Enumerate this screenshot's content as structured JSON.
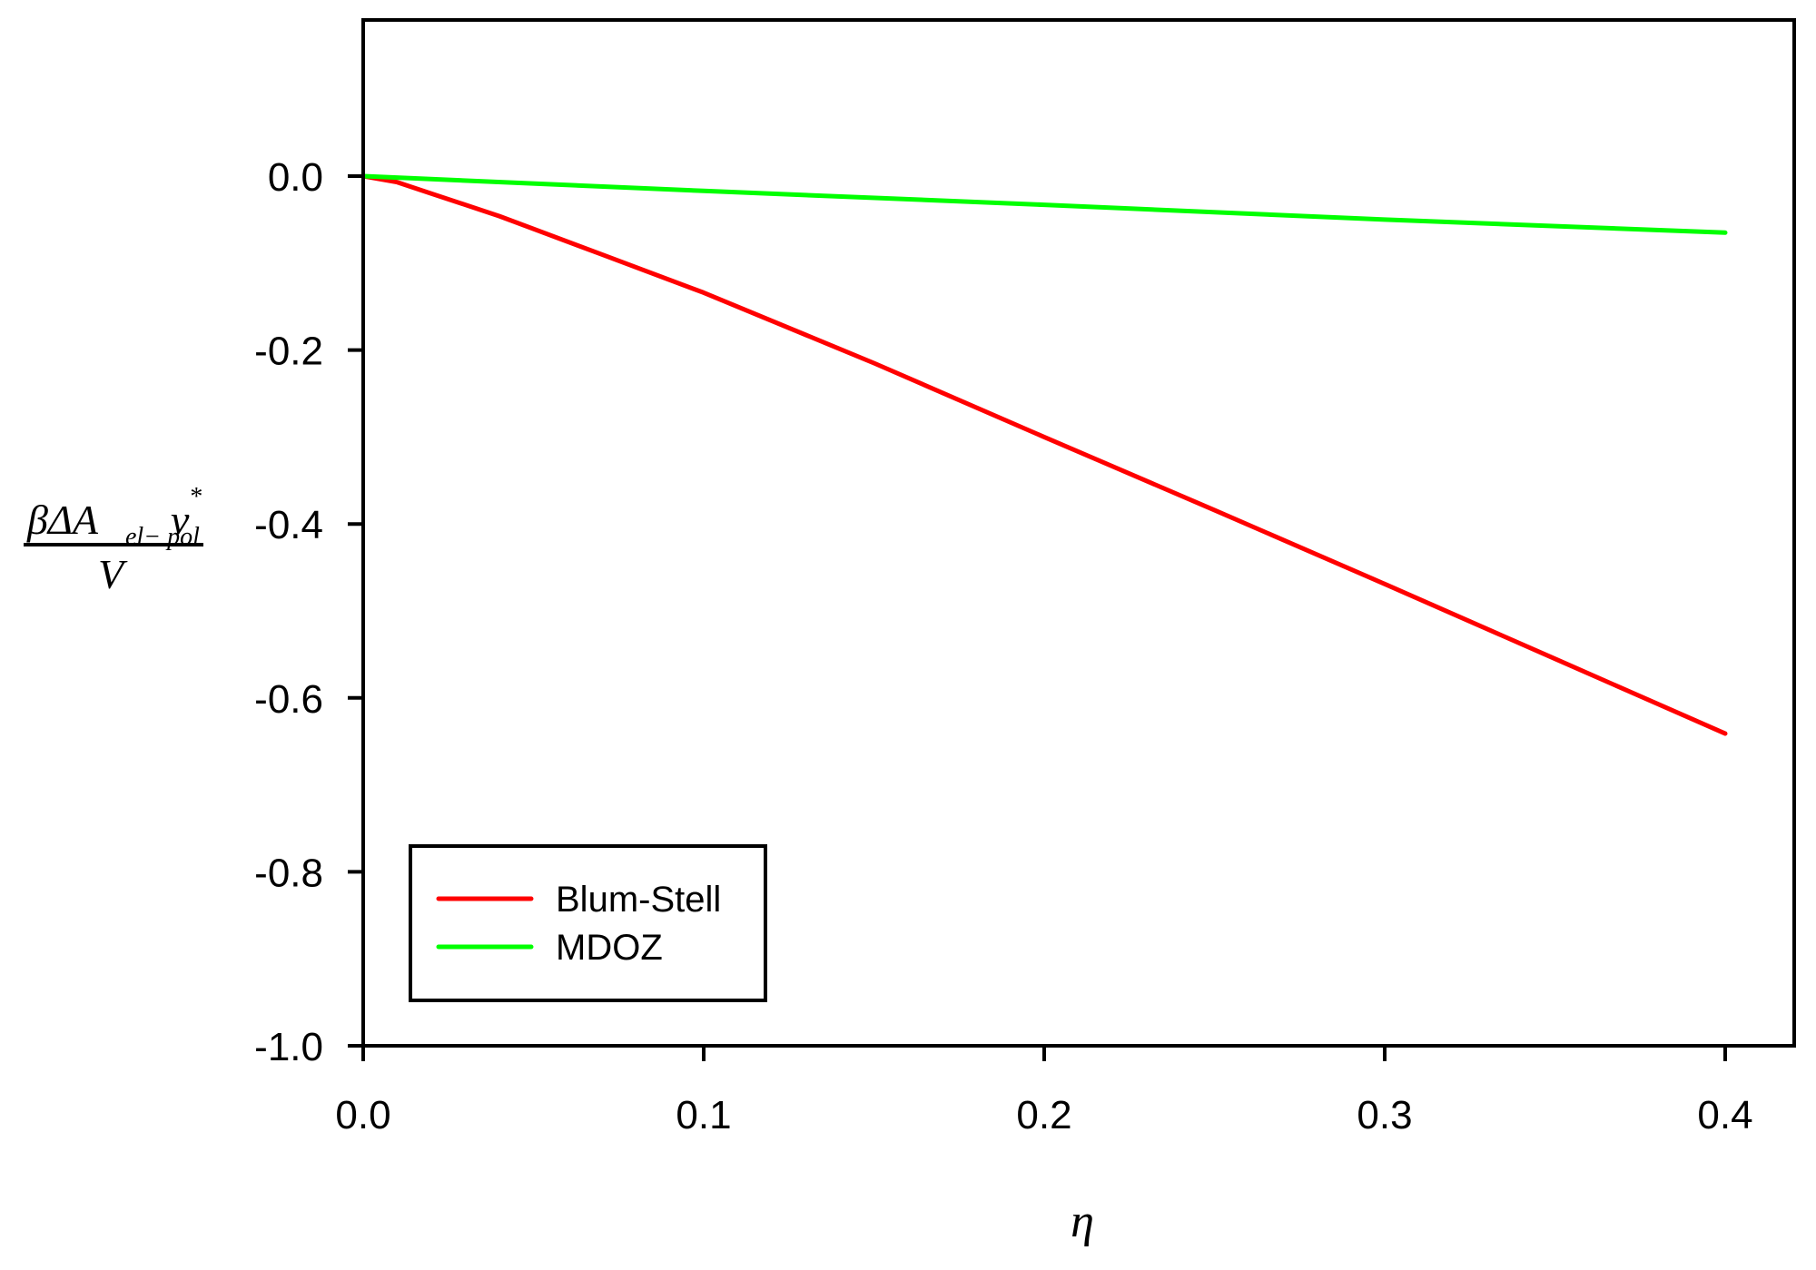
{
  "chart_data": {
    "type": "line",
    "title": "",
    "xlabel": "η",
    "ylabel": "βΔA_{el-pol} v* / V",
    "ylabel_parts": {
      "numerator_main": "βΔA",
      "numerator_sub": "el− pol",
      "numerator_v": "v",
      "numerator_sup": "*",
      "denominator": "V"
    },
    "xlim": [
      0.0,
      0.42
    ],
    "ylim": [
      -1.0,
      0.18
    ],
    "x_ticks": [
      0.0,
      0.1,
      0.2,
      0.3,
      0.4
    ],
    "x_tick_labels": [
      "0.0",
      "0.1",
      "0.2",
      "0.3",
      "0.4"
    ],
    "y_ticks": [
      0.0,
      -0.2,
      -0.4,
      -0.6,
      -0.8,
      -1.0
    ],
    "y_tick_labels": [
      "0.0",
      "-0.2",
      "-0.4",
      "-0.6",
      "-0.8",
      "-1.0"
    ],
    "grid": false,
    "legend_position": "lower left",
    "series": [
      {
        "name": "Blum-Stell",
        "color": "#ff0000",
        "x": [
          0.0,
          0.01,
          0.02,
          0.04,
          0.07,
          0.1,
          0.15,
          0.2,
          0.25,
          0.3,
          0.35,
          0.4
        ],
        "values": [
          0.0,
          -0.007,
          -0.02,
          -0.046,
          -0.09,
          -0.134,
          -0.215,
          -0.3,
          -0.384,
          -0.469,
          -0.555,
          -0.641
        ]
      },
      {
        "name": "MDOZ",
        "color": "#00ff00",
        "x": [
          0.0,
          0.1,
          0.2,
          0.3,
          0.4
        ],
        "values": [
          0.0,
          -0.017,
          -0.033,
          -0.05,
          -0.065
        ]
      }
    ]
  }
}
